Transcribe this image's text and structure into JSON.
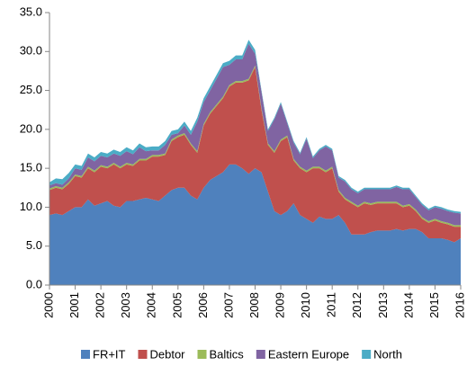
{
  "chart_data": {
    "type": "stacked_area",
    "x": [
      2000,
      2000.25,
      2000.5,
      2000.75,
      2001,
      2001.25,
      2001.5,
      2001.75,
      2002,
      2002.25,
      2002.5,
      2002.75,
      2003,
      2003.25,
      2003.5,
      2003.75,
      2004,
      2004.25,
      2004.5,
      2004.75,
      2005,
      2005.25,
      2005.5,
      2005.75,
      2006,
      2006.25,
      2006.5,
      2006.75,
      2007,
      2007.25,
      2007.5,
      2007.75,
      2008,
      2008.25,
      2008.5,
      2008.75,
      2009,
      2009.25,
      2009.5,
      2009.75,
      2010,
      2010.25,
      2010.5,
      2010.75,
      2011,
      2011.25,
      2011.5,
      2011.75,
      2012,
      2012.25,
      2012.5,
      2012.75,
      2013,
      2013.25,
      2013.5,
      2013.75,
      2014,
      2014.25,
      2014.5,
      2014.75,
      2015,
      2015.25,
      2015.5,
      2015.75,
      2016
    ],
    "series": [
      {
        "name": "FR+IT",
        "color": "#4f81bd",
        "values": [
          9.0,
          9.2,
          9.0,
          9.5,
          10.0,
          10.0,
          11.0,
          10.2,
          10.5,
          10.8,
          10.2,
          10.0,
          10.8,
          10.8,
          11.0,
          11.2,
          11.0,
          10.8,
          11.5,
          12.2,
          12.5,
          12.5,
          11.5,
          11.0,
          12.5,
          13.5,
          14.0,
          14.5,
          15.5,
          15.5,
          15.0,
          14.3,
          15.0,
          14.5,
          12.0,
          9.5,
          9.0,
          9.5,
          10.5,
          9.0,
          8.5,
          8.0,
          8.8,
          8.5,
          8.5,
          9.0,
          8.0,
          6.5,
          6.5,
          6.5,
          6.8,
          7.0,
          7.0,
          7.0,
          7.2,
          7.0,
          7.2,
          7.2,
          6.8,
          6.0,
          6.0,
          6.0,
          5.8,
          5.5,
          6.0
        ]
      },
      {
        "name": "Debtor",
        "color": "#c0504d",
        "values": [
          3.2,
          3.3,
          3.3,
          3.5,
          4.0,
          3.8,
          4.0,
          4.3,
          4.7,
          4.2,
          5.3,
          5.0,
          4.7,
          4.5,
          5.0,
          4.8,
          5.5,
          5.7,
          5.2,
          6.3,
          6.5,
          6.8,
          6.5,
          6.0,
          8.0,
          8.5,
          9.0,
          9.5,
          10.0,
          10.5,
          11.0,
          12.0,
          13.0,
          8.0,
          6.0,
          7.5,
          9.5,
          9.5,
          5.5,
          6.0,
          6.0,
          7.0,
          6.2,
          6.0,
          6.5,
          3.0,
          3.0,
          4.0,
          3.5,
          4.0,
          3.5,
          3.5,
          3.5,
          3.5,
          3.3,
          3.0,
          3.0,
          2.3,
          1.7,
          2.0,
          2.3,
          2.0,
          2.0,
          2.0,
          1.5
        ]
      },
      {
        "name": "Baltics",
        "color": "#9bbb59",
        "values": [
          0.2,
          0.2,
          0.2,
          0.2,
          0.2,
          0.2,
          0.2,
          0.2,
          0.2,
          0.2,
          0.2,
          0.2,
          0.2,
          0.2,
          0.2,
          0.2,
          0.2,
          0.2,
          0.2,
          0.2,
          0.2,
          0.2,
          0.2,
          0.2,
          0.2,
          0.2,
          0.2,
          0.2,
          0.2,
          0.2,
          0.2,
          0.2,
          0.2,
          0.2,
          0.2,
          0.2,
          0.2,
          0.2,
          0.2,
          0.2,
          0.2,
          0.2,
          0.2,
          0.2,
          0.2,
          0.2,
          0.2,
          0.2,
          0.2,
          0.2,
          0.2,
          0.2,
          0.2,
          0.2,
          0.2,
          0.2,
          0.2,
          0.2,
          0.2,
          0.2,
          0.2,
          0.2,
          0.2,
          0.2,
          0.2
        ]
      },
      {
        "name": "Eastern Europe",
        "color": "#8064a2",
        "values": [
          0.4,
          0.4,
          0.4,
          0.5,
          0.8,
          0.8,
          1.2,
          1.2,
          1.2,
          1.2,
          1.2,
          1.4,
          1.5,
          1.3,
          1.5,
          1.0,
          0.6,
          0.6,
          1.1,
          0.6,
          0.3,
          1.0,
          1.1,
          3.8,
          2.8,
          2.8,
          3.3,
          3.8,
          2.6,
          2.8,
          2.8,
          4.5,
          1.5,
          2.1,
          1.6,
          4.1,
          4.6,
          1.6,
          2.1,
          1.6,
          4.1,
          1.1,
          2.1,
          3.1,
          2.1,
          1.6,
          2.1,
          1.6,
          1.6,
          1.6,
          1.8,
          1.6,
          1.6,
          1.6,
          1.9,
          2.1,
          1.9,
          1.6,
          1.6,
          1.4,
          1.5,
          1.6,
          1.5,
          1.6,
          1.5
        ]
      },
      {
        "name": "North",
        "color": "#4bacc6",
        "values": [
          0.4,
          0.6,
          0.7,
          0.7,
          0.5,
          0.5,
          0.5,
          0.5,
          0.5,
          0.5,
          0.5,
          0.5,
          0.5,
          0.5,
          0.5,
          0.5,
          0.5,
          0.5,
          0.5,
          0.5,
          0.5,
          0.5,
          0.5,
          0.5,
          0.5,
          0.5,
          0.5,
          0.5,
          0.5,
          0.5,
          0.5,
          0.5,
          0.5,
          0.2,
          0.2,
          0.2,
          0.2,
          0.2,
          0.2,
          0.2,
          0.2,
          0.2,
          0.2,
          0.2,
          0.2,
          0.2,
          0.2,
          0.2,
          0.2,
          0.2,
          0.2,
          0.2,
          0.2,
          0.2,
          0.2,
          0.2,
          0.2,
          0.2,
          0.2,
          0.2,
          0.2,
          0.2,
          0.2,
          0.2,
          0.2
        ]
      }
    ],
    "xlim": [
      2000,
      2016
    ],
    "xticks": [
      2000,
      2001,
      2002,
      2003,
      2004,
      2005,
      2006,
      2007,
      2008,
      2009,
      2010,
      2011,
      2012,
      2013,
      2014,
      2015,
      2016
    ],
    "ylim": [
      0,
      35
    ],
    "yticks": [
      {
        "value": 0,
        "label": "0.0"
      },
      {
        "value": 5,
        "label": "5.0"
      },
      {
        "value": 10,
        "label": "10.0"
      },
      {
        "value": 15,
        "label": "15.0"
      },
      {
        "value": 20,
        "label": "20.0"
      },
      {
        "value": 25,
        "label": "25.0"
      },
      {
        "value": 30,
        "label": "30.0"
      },
      {
        "value": 35,
        "label": "35.0"
      }
    ],
    "legend": "bottom"
  }
}
